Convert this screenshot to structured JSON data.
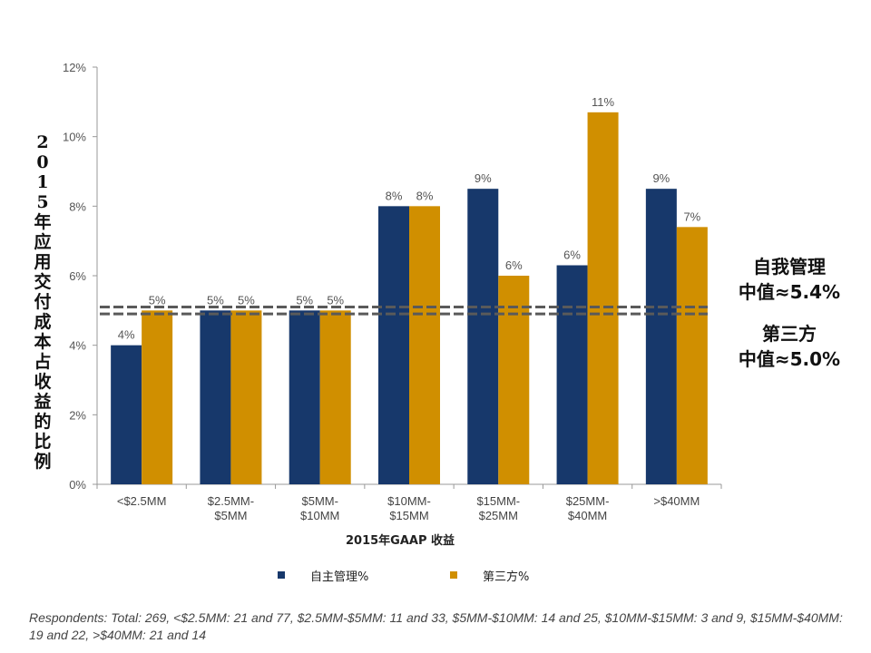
{
  "chart_data": {
    "type": "bar",
    "title": "",
    "xlabel": "2015年GAAP 收益",
    "ylabel": "2015年应用交付成本占收益的比例",
    "ylim": [
      0,
      12
    ],
    "yticks": [
      "0%",
      "2%",
      "4%",
      "6%",
      "8%",
      "10%",
      "12%"
    ],
    "grid": false,
    "categories": [
      "<$2.5MM",
      "$2.5MM-$5MM",
      "$5MM-$10MM",
      "$10MM-$15MM",
      "$15MM-$25MM",
      "$25MM-$40MM",
      ">$40MM"
    ],
    "category_lines": [
      [
        "<$2.5MM"
      ],
      [
        "$2.5MM-",
        "$5MM"
      ],
      [
        "$5MM-",
        "$10MM"
      ],
      [
        "$10MM-",
        "$15MM"
      ],
      [
        "$15MM-",
        "$25MM"
      ],
      [
        "$25MM-",
        "$40MM"
      ],
      [
        ">$40MM"
      ]
    ],
    "series": [
      {
        "name": "自主管理%",
        "color": "#17386b",
        "values": [
          4,
          5,
          5,
          8,
          8.5,
          6.3,
          8.5
        ],
        "labels": [
          "4%",
          "5%",
          "5%",
          "8%",
          "9%",
          "6%",
          "9%"
        ]
      },
      {
        "name": "第三方%",
        "color": "#d08f00",
        "values": [
          5,
          5,
          5,
          8,
          6,
          10.7,
          7.4
        ],
        "labels": [
          "5%",
          "5%",
          "5%",
          "8%",
          "6%",
          "11%",
          "7%"
        ]
      }
    ],
    "reference_lines": [
      {
        "value": 5.1,
        "style": "dashed"
      },
      {
        "value": 4.9,
        "style": "dashed"
      }
    ],
    "legend_position": "bottom"
  },
  "annotations": {
    "self_median_line1": "自我管理",
    "self_median_line2": "中值≈5.4%",
    "third_median_line1": "第三方",
    "third_median_line2": "中值≈5.0%"
  },
  "footnote": "Respondents: Total: 269, <$2.5MM: 21 and 77, $2.5MM-$5MM: 11 and 33, $5MM-$10MM: 14 and 25, $10MM-$15MM: 3 and 9, $15MM-$40MM: 19 and 22, >$40MM: 21 and 14"
}
